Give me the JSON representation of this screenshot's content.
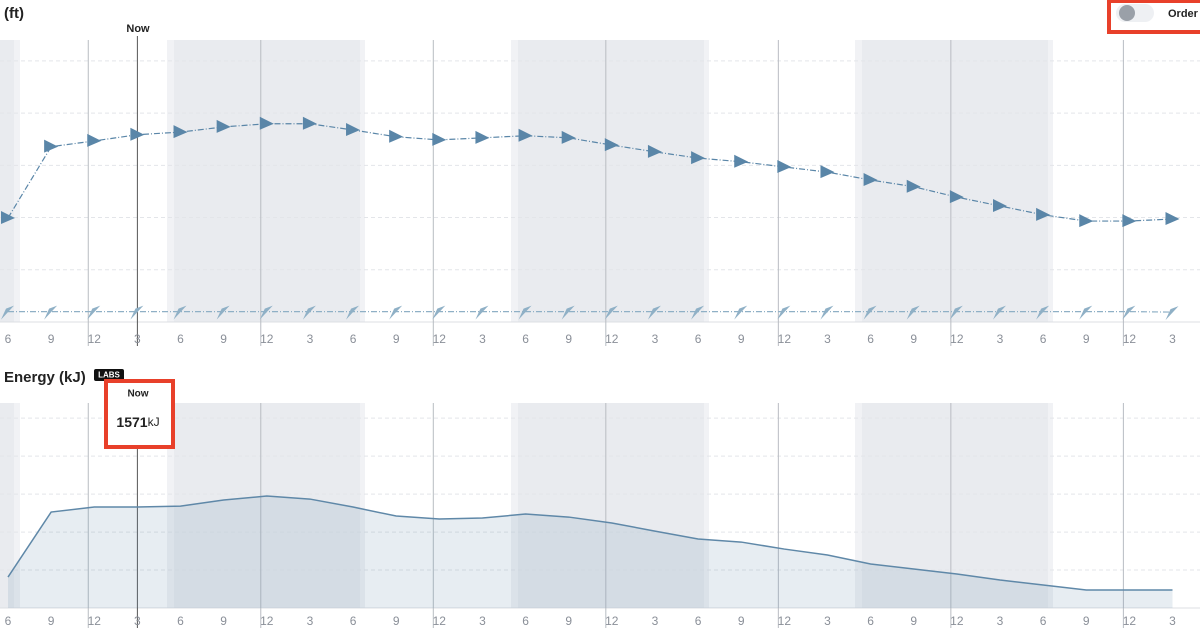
{
  "chart_data": [
    {
      "type": "line",
      "title": "(ft)",
      "now_label": "Now",
      "categories": [
        "6",
        "9",
        "12",
        "3",
        "6",
        "9",
        "12",
        "3",
        "6",
        "9",
        "12",
        "3",
        "6",
        "9",
        "12",
        "3",
        "6",
        "9",
        "12",
        "3",
        "6",
        "9",
        "12",
        "3",
        "6",
        "9",
        "12",
        "3"
      ],
      "series": [
        {
          "color": "#5a86a8",
          "values": [
            2.0,
            3.37,
            3.48,
            3.6,
            3.65,
            3.75,
            3.81,
            3.81,
            3.69,
            3.56,
            3.5,
            3.54,
            3.58,
            3.54,
            3.4,
            3.27,
            3.15,
            3.08,
            2.98,
            2.88,
            2.73,
            2.6,
            2.4,
            2.23,
            2.06,
            1.94,
            1.94,
            1.98
          ]
        },
        {
          "color": "#8fb0c6",
          "values": [
            0.2,
            0.2,
            0.2,
            0.2,
            0.2,
            0.2,
            0.2,
            0.2,
            0.2,
            0.2,
            0.2,
            0.2,
            0.2,
            0.2,
            0.2,
            0.2,
            0.2,
            0.2,
            0.2,
            0.2,
            0.2,
            0.2,
            0.2,
            0.2,
            0.2,
            0.2,
            0.2,
            0.19
          ]
        }
      ],
      "ylim": [
        0,
        5.42
      ]
    },
    {
      "type": "area",
      "title": "Energy (kJ)",
      "badge": "LABS",
      "now_label": "Now",
      "now_value": 1571,
      "now_unit": "kJ",
      "categories": [
        "6",
        "9",
        "12",
        "3",
        "6",
        "9",
        "12",
        "3",
        "6",
        "9",
        "12",
        "3",
        "6",
        "9",
        "12",
        "3",
        "6",
        "9",
        "12",
        "3",
        "6",
        "9",
        "12",
        "3",
        "6",
        "9",
        "12",
        "3"
      ],
      "color": "#5f88a8",
      "values": [
        482,
        1493,
        1571,
        1571,
        1586,
        1680,
        1742,
        1695,
        1571,
        1431,
        1384,
        1400,
        1462,
        1415,
        1322,
        1197,
        1073,
        1026,
        917,
        824,
        684,
        606,
        529,
        435,
        358,
        280,
        280,
        280
      ],
      "ylim": [
        0,
        3190
      ]
    }
  ],
  "toggle": {
    "label": "Order l"
  }
}
